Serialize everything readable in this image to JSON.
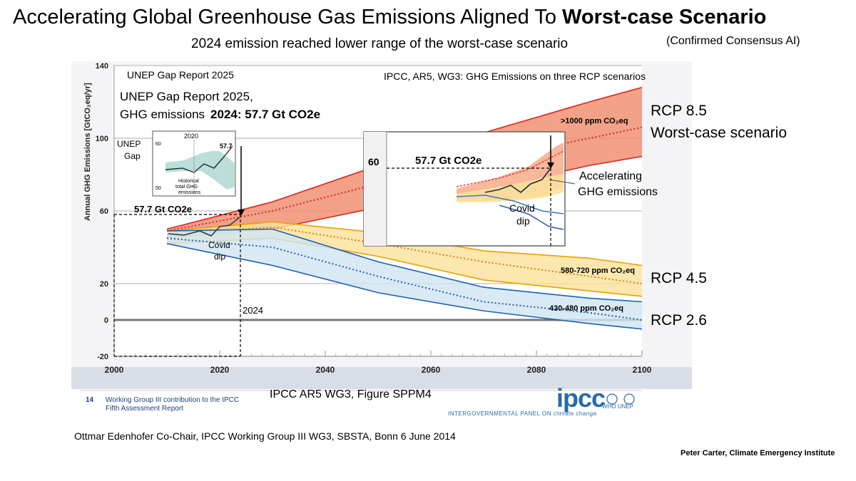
{
  "header": {
    "title_main": "Accelerating Global Greenhouse Gas Emissions Aligned To ",
    "title_bold": "Worst-case Scenario",
    "subtitle": "2024 emission reached lower range of the worst-case scenario",
    "confirmed": "(Confirmed Consensus AI)"
  },
  "chart_data": {
    "type": "area",
    "title": "Annual GHG Emissions [GtCO2eq/yr]",
    "ylabel": "Annual GHG Emissions [GtCO₂eq/yr]",
    "xlabel": "",
    "xlim": [
      2000,
      2100
    ],
    "ylim": [
      -20,
      140
    ],
    "x_ticks": [
      2000,
      2020,
      2040,
      2060,
      2080,
      2100
    ],
    "y_ticks": [
      -20,
      0,
      20,
      60,
      100,
      140
    ],
    "grid": true,
    "series": [
      {
        "name": ">1000 ppm CO₂eq",
        "color": "#f08a6a",
        "x": [
          2010,
          2030,
          2050,
          2070,
          2090,
          2100
        ],
        "upper": [
          50,
          65,
          85,
          103,
          120,
          128
        ],
        "lower": [
          45,
          50,
          62,
          72,
          85,
          90
        ],
        "median": [
          49,
          60,
          75,
          88,
          100,
          106
        ]
      },
      {
        "name": "580-720 ppm CO₂eq",
        "color": "#fbe29a",
        "x": [
          2010,
          2030,
          2050,
          2070,
          2090,
          2100
        ],
        "upper": [
          49,
          54,
          48,
          38,
          34,
          30
        ],
        "lower": [
          42,
          45,
          35,
          22,
          16,
          13
        ],
        "median": [
          47,
          51,
          42,
          32,
          24,
          20
        ]
      },
      {
        "name": "430-480 ppm CO₂eq",
        "color": "#cfe5f2",
        "x": [
          2010,
          2030,
          2050,
          2070,
          2090,
          2100
        ],
        "upper": [
          49,
          50,
          32,
          18,
          12,
          10
        ],
        "lower": [
          42,
          30,
          15,
          5,
          -2,
          -5
        ],
        "median": [
          45,
          40,
          24,
          10,
          4,
          0
        ]
      }
    ],
    "observed": {
      "label": "57.7 Gt CO2e",
      "year": 2024,
      "value": 57.7
    },
    "annotations": {
      "unep_label": "UNEP Gap Report 2025",
      "unep_line1": "UNEP Gap Report 2025,",
      "unep_line2_prefix": "GHG emissions",
      "unep_line2_bold": "2024: 57.7 Gt CO2e",
      "ipcc_label": "IPCC, AR5, WG3: GHG Emissions on three RCP scenarios",
      "obs_label": "57.7 Gt CO2e",
      "covid_1": "Covid",
      "covid_2": "dip",
      "year_2024": "2024",
      "ppm_high": ">1000 ppm CO₂eq",
      "ppm_mid": "580-720 ppm CO₂eq",
      "ppm_low": "430-480 ppm CO₂eq",
      "rcp85": "RCP 8.5",
      "worst": "Worst-case scenario",
      "rcp45": "RCP 4.5",
      "rcp26": "RCP 2.6",
      "inset_small": {
        "title": "UNEP",
        "title2": "Gap",
        "year": "2020",
        "val": "57.7",
        "y_top": "60",
        "y_bot": "50",
        "caption1": "Historical",
        "caption2": "total GHG",
        "caption3": "emissions"
      },
      "inset_large": {
        "tick": "60",
        "label": "57.7 Gt CO2e",
        "covid_1": "Covid",
        "covid_2": "dip"
      },
      "accel_1": "Accelerating",
      "accel_2": "GHG emissions"
    }
  },
  "footer": {
    "wg_number": "14",
    "wg_text": "Working Group III contribution to the IPCC Fifth Assessment Report",
    "figure_label": "IPCC AR5 WG3, Figure SPPM4",
    "ipcc_logo": "ipcc",
    "ipcc_sub": "INTERGOVERNMENTAL PANEL ON climate change",
    "who_unep": "WHO  UNEP",
    "credit": "Ottmar Edenhofer Co-Chair, IPCC Working Group III WG3, SBSTA, Bonn 6 June 2014",
    "author": "Peter Carter, Climate Emergency Institute"
  }
}
